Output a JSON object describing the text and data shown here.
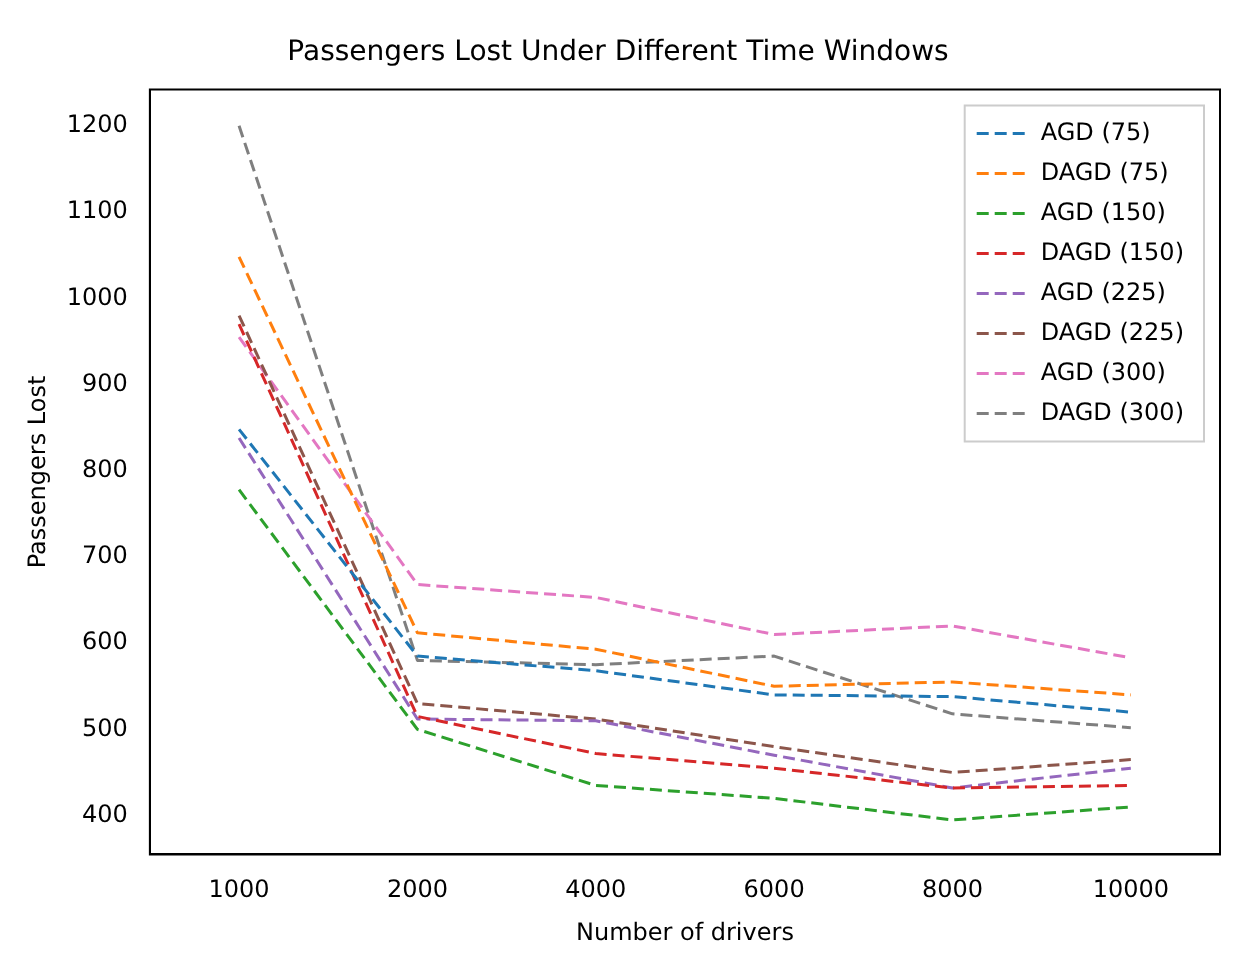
{
  "chart_data": {
    "type": "line",
    "title": "Passengers Lost Under Different Time Windows",
    "xlabel": "Number of drivers",
    "ylabel": "Passengers Lost",
    "categories": [
      "1000",
      "2000",
      "4000",
      "6000",
      "8000",
      "10000"
    ],
    "ylim": [
      355,
      1242
    ],
    "yticks": [
      400,
      500,
      600,
      700,
      800,
      900,
      1000,
      1100,
      1200
    ],
    "grid": false,
    "legend": "top right",
    "marker": "none",
    "line_style": "dashed",
    "series": [
      {
        "name": "AGD (75)",
        "color": "#1f77b4",
        "values": [
          848,
          585,
          568,
          540,
          538,
          520
        ]
      },
      {
        "name": "DAGD (75)",
        "color": "#ff7f0e",
        "values": [
          1048,
          612,
          593,
          550,
          555,
          540
        ]
      },
      {
        "name": "AGD (150)",
        "color": "#2ca02c",
        "values": [
          778,
          500,
          435,
          420,
          395,
          410
        ]
      },
      {
        "name": "DAGD (150)",
        "color": "#d62728",
        "values": [
          970,
          515,
          472,
          455,
          432,
          435
        ]
      },
      {
        "name": "AGD (225)",
        "color": "#9467bd",
        "values": [
          838,
          512,
          510,
          470,
          432,
          455
        ]
      },
      {
        "name": "DAGD (225)",
        "color": "#8c564b",
        "values": [
          980,
          530,
          512,
          480,
          450,
          465
        ]
      },
      {
        "name": "AGD (300)",
        "color": "#e377c2",
        "values": [
          955,
          668,
          653,
          610,
          620,
          583
        ]
      },
      {
        "name": "DAGD (300)",
        "color": "#7f7f7f",
        "values": [
          1200,
          580,
          575,
          585,
          518,
          502
        ]
      }
    ]
  }
}
